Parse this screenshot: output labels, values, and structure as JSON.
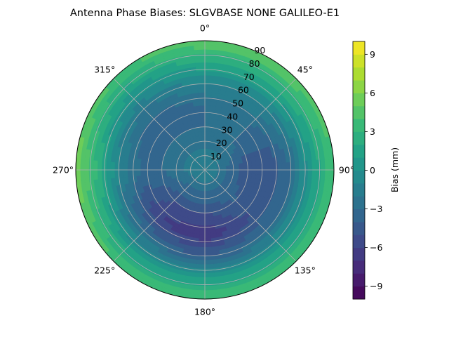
{
  "chart_data": {
    "type": "polar-contour",
    "title": "Antenna Phase Biases: SLGVBASE        NONE GALILEO-E1",
    "angular_ticks": [
      "0°",
      "45°",
      "90°",
      "135°",
      "180°",
      "225°",
      "270°",
      "315°"
    ],
    "angular_tick_values": [
      0,
      45,
      90,
      135,
      180,
      225,
      270,
      315
    ],
    "radial_ticks": [
      "10",
      "20",
      "30",
      "40",
      "50",
      "60",
      "70",
      "80",
      "90"
    ],
    "radial_tick_values": [
      10,
      20,
      30,
      40,
      50,
      60,
      70,
      80,
      90
    ],
    "radial_range": [
      0,
      90
    ],
    "zero_location": "N",
    "direction": "clockwise",
    "grid": true,
    "colormap": "viridis",
    "colorbar": {
      "label": "Bias (mm)",
      "range": [
        -10,
        10
      ],
      "ticks": [
        "−9",
        "−6",
        "−3",
        "0",
        "3",
        "6",
        "9"
      ],
      "tick_values": [
        -9,
        -6,
        -3,
        0,
        3,
        6,
        9
      ],
      "levels": 20
    },
    "field_samples": {
      "radius": [
        0,
        15,
        30,
        45,
        60,
        75,
        85,
        90
      ],
      "azimuth": [
        0,
        45,
        90,
        135,
        180,
        225,
        270,
        315
      ],
      "bias": [
        [
          -1,
          -1,
          -1,
          -1,
          -1,
          -1,
          -1,
          -1
        ],
        [
          -2,
          -2,
          -3,
          -3,
          -3,
          -3,
          -2,
          -2
        ],
        [
          -3,
          -3,
          -5,
          -4,
          -5,
          -5,
          -3,
          -3
        ],
        [
          -3,
          -3,
          -5,
          -5,
          -7,
          -6,
          -3,
          -4
        ],
        [
          -1,
          -1,
          -3,
          -3,
          -4,
          -3,
          -1,
          -2
        ],
        [
          2,
          2,
          1,
          1,
          1,
          1,
          3,
          1
        ],
        [
          4,
          4,
          3,
          3,
          3,
          3,
          5,
          3
        ],
        [
          5,
          5,
          4,
          4,
          4,
          4,
          6,
          4
        ]
      ]
    }
  }
}
